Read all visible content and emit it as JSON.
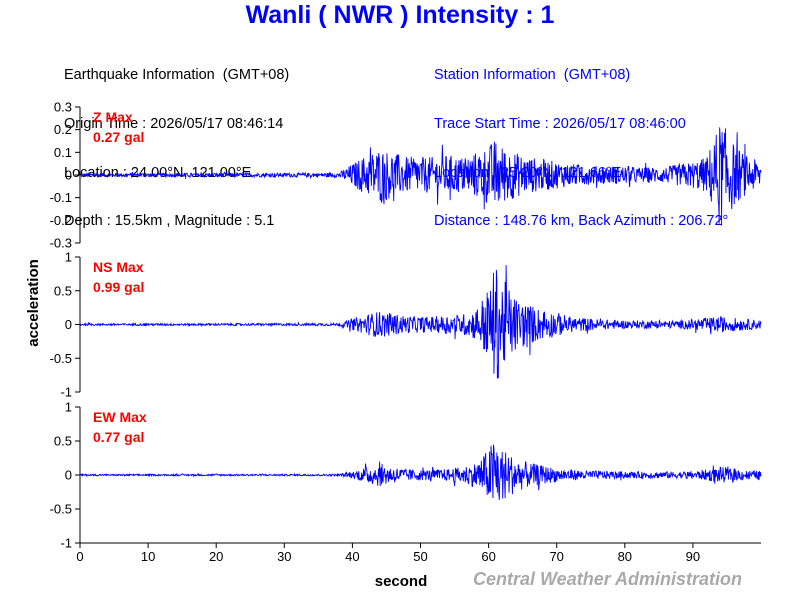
{
  "title": "Wanli ( NWR ) Intensity : 1",
  "colors": {
    "title": "#0000ff",
    "trace": "#0000ff",
    "max_label": "#ff0000",
    "station_info": "#0000ff",
    "credit": "#a9a9a9"
  },
  "earthquake_info": [
    "Earthquake Information  (GMT+08)",
    "Origin Time : 2026/05/17 08:46:14",
    "Location : 24.00°N, 121.00°E",
    "Depth : 15.5km , Magnitude : 5.1"
  ],
  "station_info": [
    "Station Information  (GMT+08)",
    "Trace Start Time : 2026/05/17 08:46:00",
    "Location : 25.20°N, 121.66°E",
    "Distance : 148.76 km, Back Azimuth : 206.72°"
  ],
  "credit": "Central Weather Administration",
  "chart_data": [
    {
      "type": "line",
      "title": "Z Max",
      "max_value": "0.27 gal",
      "ylabel": "acceleration",
      "xlabel": "",
      "xlim": [
        0,
        100
      ],
      "ylim": [
        -0.3,
        0.3
      ],
      "yticks": [
        -0.3,
        -0.2,
        -0.1,
        0,
        0.1,
        0.2,
        0.3
      ],
      "ytick_labels": [
        "-0.3",
        "-0.2",
        "-0.1",
        "0",
        "0.1",
        "0.2",
        "0.3"
      ],
      "envelope": {
        "x": [
          0,
          10,
          20,
          30,
          38,
          40,
          42,
          44,
          46,
          48,
          50,
          52,
          54,
          56,
          58,
          60,
          61,
          62,
          64,
          66,
          68,
          70,
          72,
          74,
          76,
          78,
          80,
          82,
          84,
          86,
          88,
          90,
          92,
          93,
          94,
          95,
          96,
          98,
          100
        ],
        "y": [
          0.008,
          0.008,
          0.009,
          0.009,
          0.01,
          0.05,
          0.09,
          0.12,
          0.1,
          0.08,
          0.08,
          0.08,
          0.09,
          0.08,
          0.1,
          0.13,
          0.16,
          0.13,
          0.1,
          0.08,
          0.07,
          0.06,
          0.05,
          0.045,
          0.04,
          0.04,
          0.04,
          0.035,
          0.035,
          0.035,
          0.05,
          0.06,
          0.08,
          0.16,
          0.24,
          0.2,
          0.14,
          0.08,
          0.06
        ]
      }
    },
    {
      "type": "line",
      "title": "NS Max",
      "max_value": "0.99 gal",
      "xlabel": "",
      "xlim": [
        0,
        100
      ],
      "ylim": [
        -1,
        1
      ],
      "yticks": [
        -1,
        -0.5,
        0,
        0.5,
        1
      ],
      "ytick_labels": [
        "-1",
        "-0.5",
        "0",
        "0.5",
        "1"
      ],
      "envelope": {
        "x": [
          0,
          10,
          20,
          30,
          38,
          40,
          42,
          44,
          46,
          48,
          50,
          52,
          54,
          56,
          58,
          60,
          61,
          62,
          64,
          66,
          68,
          70,
          72,
          74,
          76,
          78,
          80,
          82,
          84,
          86,
          88,
          90,
          92,
          94,
          96,
          98,
          100
        ],
        "y": [
          0.015,
          0.015,
          0.016,
          0.017,
          0.02,
          0.08,
          0.15,
          0.2,
          0.16,
          0.13,
          0.12,
          0.12,
          0.14,
          0.15,
          0.22,
          0.55,
          0.9,
          0.7,
          0.4,
          0.3,
          0.22,
          0.18,
          0.12,
          0.1,
          0.08,
          0.07,
          0.06,
          0.06,
          0.06,
          0.055,
          0.06,
          0.08,
          0.1,
          0.12,
          0.1,
          0.08,
          0.07
        ]
      }
    },
    {
      "type": "line",
      "title": "EW Max",
      "max_value": "0.77 gal",
      "xlabel": "second",
      "xlim": [
        0,
        100
      ],
      "ylim": [
        -1,
        1
      ],
      "yticks": [
        -1,
        -0.5,
        0,
        0.5,
        1
      ],
      "ytick_labels": [
        "-1",
        "-0.5",
        "0",
        "0.5",
        "1"
      ],
      "xticks": [
        0,
        10,
        20,
        30,
        40,
        50,
        60,
        70,
        80,
        90
      ],
      "xtick_labels": [
        "0",
        "10",
        "20",
        "30",
        "40",
        "50",
        "60",
        "70",
        "80",
        "90"
      ],
      "envelope": {
        "x": [
          0,
          10,
          20,
          30,
          38,
          40,
          42,
          44,
          46,
          48,
          50,
          52,
          54,
          56,
          58,
          60,
          61,
          62,
          64,
          66,
          68,
          70,
          72,
          74,
          76,
          78,
          80,
          82,
          84,
          86,
          88,
          90,
          92,
          94,
          96,
          98,
          100
        ],
        "y": [
          0.012,
          0.012,
          0.013,
          0.013,
          0.015,
          0.05,
          0.12,
          0.17,
          0.12,
          0.09,
          0.08,
          0.08,
          0.09,
          0.12,
          0.18,
          0.38,
          0.6,
          0.4,
          0.25,
          0.18,
          0.14,
          0.1,
          0.08,
          0.07,
          0.06,
          0.06,
          0.05,
          0.05,
          0.05,
          0.05,
          0.05,
          0.06,
          0.08,
          0.12,
          0.09,
          0.07,
          0.06
        ]
      }
    }
  ]
}
